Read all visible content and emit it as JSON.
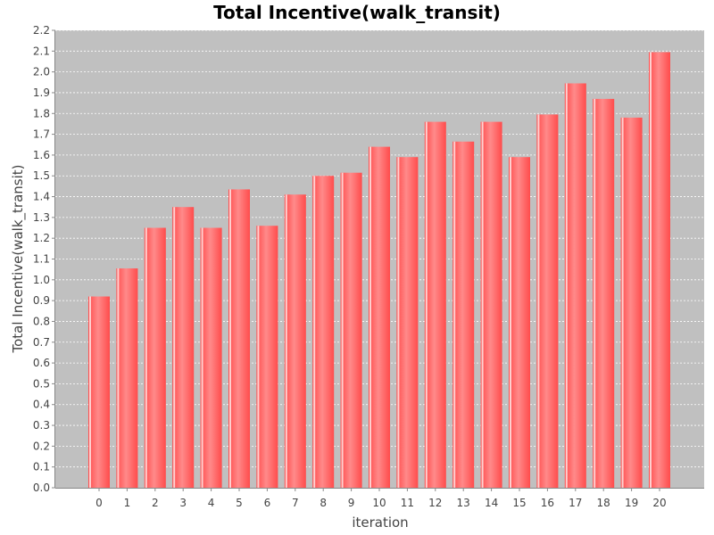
{
  "chart_data": {
    "type": "bar",
    "title": "Total Incentive(walk_transit)",
    "xlabel": "iteration",
    "ylabel": "Total Incentive(walk_transit)",
    "categories": [
      "0",
      "1",
      "2",
      "3",
      "4",
      "5",
      "6",
      "7",
      "8",
      "9",
      "10",
      "11",
      "12",
      "13",
      "14",
      "15",
      "16",
      "17",
      "18",
      "19",
      "20"
    ],
    "values": [
      0.92,
      1.055,
      1.25,
      1.35,
      1.25,
      1.435,
      1.26,
      1.41,
      1.5,
      1.515,
      1.64,
      1.59,
      1.76,
      1.665,
      1.76,
      1.59,
      1.795,
      1.945,
      1.87,
      1.78,
      2.095
    ],
    "ylim": [
      0,
      2.2
    ],
    "yticks": [
      "0.0",
      "0.1",
      "0.2",
      "0.3",
      "0.4",
      "0.5",
      "0.6",
      "0.7",
      "0.8",
      "0.9",
      "1.0",
      "1.1",
      "1.2",
      "1.3",
      "1.4",
      "1.5",
      "1.6",
      "1.7",
      "1.8",
      "1.9",
      "2.0",
      "2.1",
      "2.2"
    ],
    "grid": true,
    "legend": "none",
    "colors": {
      "plot_background": "#c0c0c0",
      "bar": "#ff5555",
      "bar_highlight": "#ff9a9a",
      "gridline": "#ffffff"
    }
  }
}
